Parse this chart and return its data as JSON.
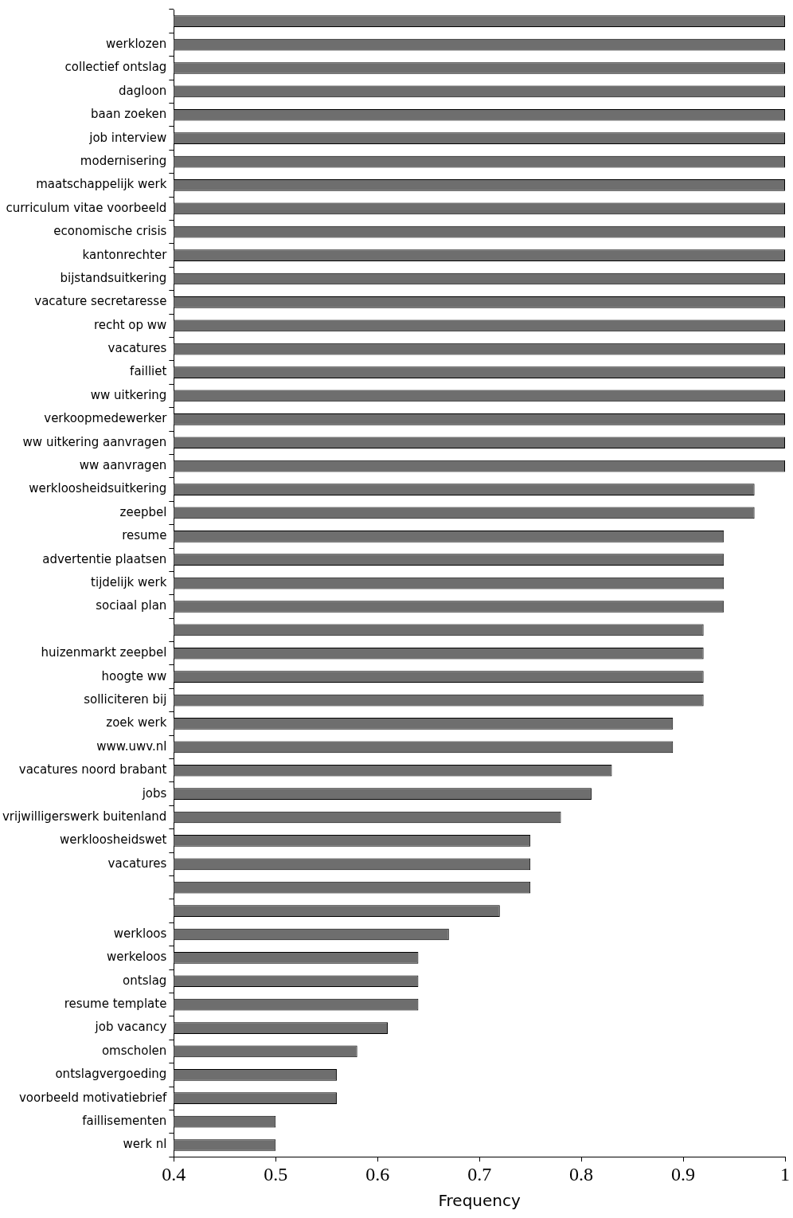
{
  "chart_data": {
    "type": "bar",
    "orientation": "horizontal",
    "xlabel": "Frequency",
    "categories": [
      null,
      "werklozen",
      "collectief ontslag",
      "dagloon",
      "baan zoeken",
      "job interview",
      "modernisering",
      "maatschappelijk werk",
      "curriculum vitae voorbeeld",
      "economische crisis",
      "kantonrechter",
      "bijstandsuitkering",
      "vacature secretaresse",
      "recht op ww",
      "vacatures",
      "failliet",
      "ww uitkering",
      "verkoopmedewerker",
      "ww uitkering aanvragen",
      "ww aanvragen",
      "werkloosheidsuitkering",
      "zeepbel",
      "resume",
      "advertentie plaatsen",
      "tijdelijk werk",
      "sociaal plan",
      null,
      "huizenmarkt zeepbel",
      "hoogte ww",
      "solliciteren bij",
      "zoek werk",
      "www.uwv.nl",
      "vacatures noord brabant",
      "jobs",
      "vrijwilligerswerk buitenland",
      "werkloosheidswet",
      "vacatures",
      null,
      null,
      "werkloos",
      "werkeloos",
      "ontslag",
      "resume template",
      "job vacancy",
      "omscholen",
      "ontslagvergoeding",
      "voorbeeld motivatiebrief",
      "faillisementen",
      "werk nl"
    ],
    "values": [
      1,
      1,
      1,
      1,
      1,
      1,
      1,
      1,
      1,
      1,
      1,
      1,
      1,
      1,
      1,
      1,
      1,
      1,
      1,
      1,
      0.97,
      0.97,
      0.94,
      0.94,
      0.94,
      0.94,
      0.92,
      0.92,
      0.92,
      0.92,
      0.89,
      0.89,
      0.83,
      0.81,
      0.78,
      0.75,
      0.75,
      0.75,
      0.72,
      0.67,
      0.64,
      0.64,
      0.64,
      0.61,
      0.58,
      0.56,
      0.56,
      0.5,
      0.5
    ],
    "color": "#6e6e6e",
    "xlim": [
      0.4,
      1
    ],
    "xticks": [
      0.4,
      0.5,
      0.6,
      0.7,
      0.8,
      0.9,
      1
    ]
  }
}
